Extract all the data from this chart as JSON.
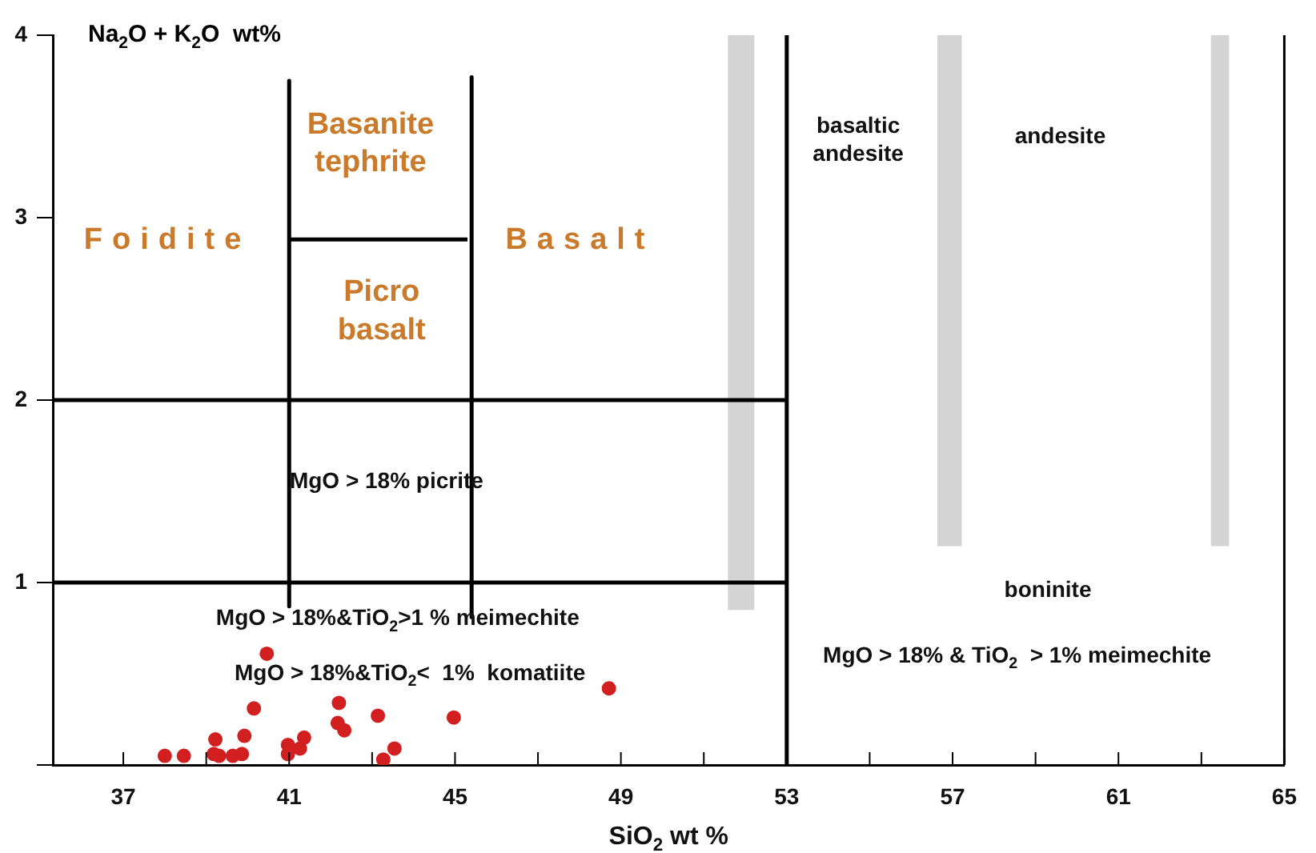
{
  "chart_data": {
    "type": "scatter",
    "xlabel": "SiO$_{2}$ wt %",
    "ylabel": "Na$_{2}$O + K$_{2}$O  wt%",
    "xlim": [
      35.3,
      65
    ],
    "ylim": [
      0,
      4
    ],
    "xticks": [
      37,
      {
        "value": 39,
        "label": null
      },
      41,
      {
        "value": 43,
        "label": null
      },
      45,
      {
        "value": 47,
        "label": null
      },
      49,
      {
        "value": 51,
        "label": null
      },
      53,
      {
        "value": 55,
        "label": null
      },
      57,
      {
        "value": 59,
        "label": null
      },
      61,
      {
        "value": 63,
        "label": null
      },
      65
    ],
    "yticks": [
      {
        "value": 0,
        "label": null
      },
      1,
      2,
      3,
      4
    ],
    "grid": false,
    "legend": false,
    "marker": "circle",
    "series": [
      {
        "color": "#d21f1f",
        "x": [
          38.0,
          38.46,
          39.22,
          39.18,
          39.31,
          39.64,
          39.86,
          39.92,
          40.15,
          40.46,
          40.97,
          40.97,
          41.26,
          41.36,
          42.2,
          42.17,
          42.33,
          43.14,
          43.27,
          43.54,
          44.97,
          48.71
        ],
        "values": [
          0.05,
          0.05,
          0.14,
          0.06,
          0.05,
          0.05,
          0.06,
          0.16,
          0.31,
          0.61,
          0.11,
          0.06,
          0.09,
          0.15,
          0.34,
          0.23,
          0.19,
          0.27,
          0.03,
          0.09,
          0.26,
          0.42
        ]
      },
      {
        "type": "line",
        "marker": "none",
        "color": "#000000",
        "x": [
          41,
          41
        ],
        "values": [
          3.75,
          0.87
        ]
      },
      {
        "type": "line",
        "marker": "none",
        "color": "#000000",
        "x": [
          45.4,
          45.4
        ],
        "values": [
          3.77,
          0.81
        ]
      },
      {
        "type": "line",
        "marker": "none",
        "color": "#000000",
        "x": [
          41,
          45.3
        ],
        "values": [
          2.88,
          2.88
        ]
      },
      {
        "type": "line",
        "marker": "none",
        "color": "#000000",
        "x": [
          35.3,
          53
        ],
        "values": [
          2,
          2
        ]
      },
      {
        "type": "line",
        "marker": "none",
        "color": "#000000",
        "x": [
          35.3,
          53
        ],
        "values": [
          1,
          1
        ]
      },
      {
        "type": "line",
        "marker": "none",
        "color": "#000000",
        "x": [
          53,
          53
        ],
        "values": [
          0,
          4
        ]
      },
      {
        "type": "area",
        "marker": "none",
        "color": "#d4d4d4",
        "x": [
          51.6,
          51.6,
          52.2,
          52.2
        ],
        "values": [
          0.85,
          4,
          4,
          0.85
        ]
      },
      {
        "type": "area",
        "marker": "none",
        "color": "#d4d4d4",
        "x": [
          56.65,
          56.65,
          57.2,
          57.2
        ],
        "values": [
          1.2,
          4,
          4,
          1.2
        ]
      },
      {
        "type": "area",
        "marker": "none",
        "color": "#d4d4d4",
        "x": [
          63.25,
          63.25,
          63.65,
          63.65
        ],
        "values": [
          1.2,
          4,
          4,
          1.2
        ]
      }
    ],
    "annotations": [
      "Foidite",
      "Basanite\ntephrite",
      "Picro\nbasalt",
      "Basalt",
      "basaltic\nandesite",
      "andesite",
      "MgO > 18% picrite",
      "MgO > 18%&TiO$_{2}$>1 % meimechite",
      "MgO > 18%&TiO$_{2}$<  1%  komatiite",
      "boninite",
      "MgO > 18% & TiO$_{2}$  > 1% meimechite"
    ]
  }
}
